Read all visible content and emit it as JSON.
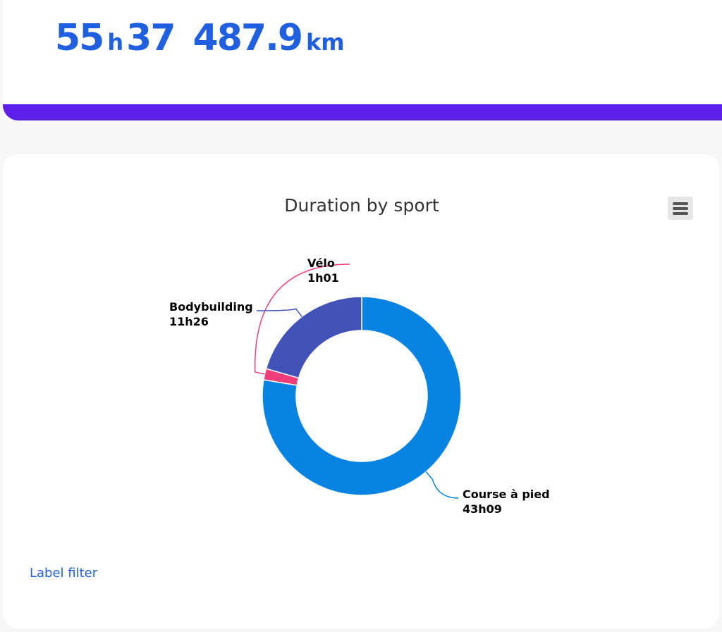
{
  "stats": {
    "hours": "55",
    "hours_unit": "h",
    "minutes": "37",
    "distance": "487.9",
    "distance_unit": "km"
  },
  "colors": {
    "stat_text": "#1f5fe0",
    "accent_bar": "#5b1fe8"
  },
  "menu": {
    "icon": "hamburger-menu-icon"
  },
  "label_filter": "Label filter",
  "chart_data": {
    "type": "pie",
    "variant": "donut",
    "title": "Duration by sport",
    "legend": "none",
    "data_labels": true,
    "slices": [
      {
        "name": "Course à pied",
        "value_minutes": 2589,
        "label": "43h09",
        "color": "#0783e3"
      },
      {
        "name": "Vélo",
        "value_minutes": 61,
        "label": "1h01",
        "color": "#ee3d79"
      },
      {
        "name": "Bodybuilding",
        "value_minutes": 686,
        "label": "11h26",
        "color": "#4252b6"
      }
    ]
  }
}
